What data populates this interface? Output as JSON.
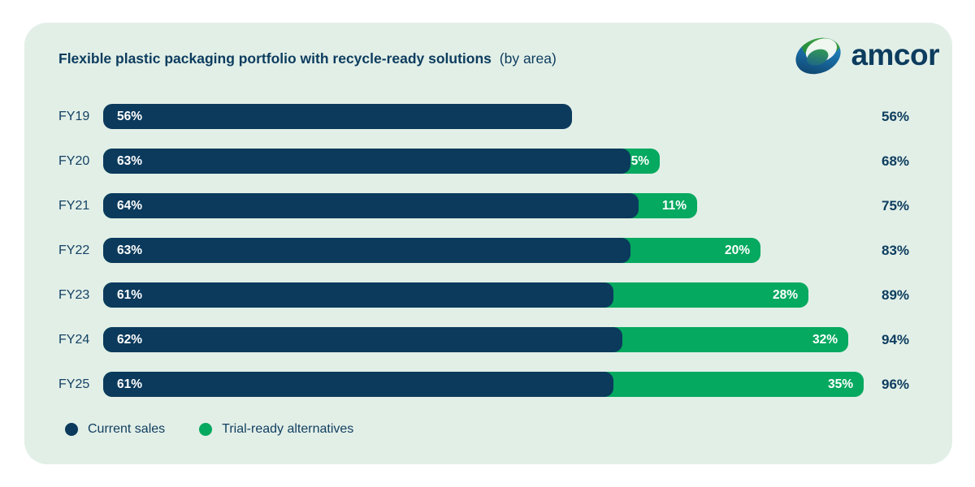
{
  "title": {
    "main": "Flexible plastic packaging portfolio with recycle-ready solutions",
    "suffix": "(by area)"
  },
  "logo": {
    "wordmark": "amcor",
    "mark": "amcor-orb-icon"
  },
  "legend": {
    "items": [
      {
        "label": "Current sales",
        "color": "#0B3A5C"
      },
      {
        "label": "Trial-ready alternatives",
        "color": "#05A95F"
      }
    ]
  },
  "colors": {
    "page_background": "#FFFFFF",
    "card_background": "#E2EFE7",
    "navy": "#0B3A5C",
    "green": "#05A95F",
    "text_navy": "#0C3C5E",
    "bar_label": "#FFFFFF"
  },
  "chart_data": {
    "type": "bar",
    "orientation": "horizontal",
    "stacked": true,
    "title": "Flexible plastic packaging portfolio with recycle-ready solutions (by area)",
    "categories": [
      "FY19",
      "FY20",
      "FY21",
      "FY22",
      "FY23",
      "FY24",
      "FY25"
    ],
    "series": [
      {
        "name": "Current sales",
        "color": "#0B3A5C",
        "values": [
          56,
          63,
          64,
          63,
          61,
          62,
          61
        ]
      },
      {
        "name": "Trial-ready alternatives",
        "color": "#05A95F",
        "values": [
          0,
          5,
          11,
          20,
          28,
          32,
          35
        ]
      }
    ],
    "totals": [
      56,
      68,
      75,
      83,
      89,
      94,
      96
    ],
    "value_suffix": "%",
    "xlim": [
      0,
      100
    ],
    "grid": false,
    "legend_position": "bottom",
    "value_labels": "inside-bars",
    "total_labels": "right-of-bars"
  }
}
